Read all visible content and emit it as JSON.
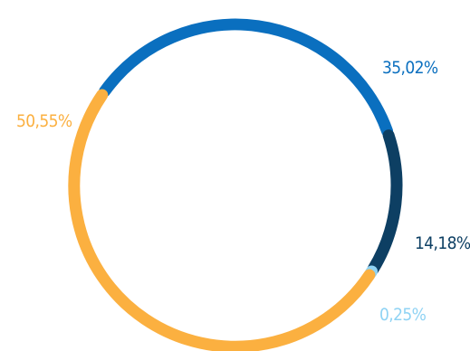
{
  "chart_data": {
    "type": "pie",
    "donut": true,
    "title": "",
    "slices": [
      {
        "value": 35.02,
        "label": "35,02%",
        "color": "#0a6fbf"
      },
      {
        "value": 14.18,
        "label": "14,18%",
        "color": "#0d3f63"
      },
      {
        "value": 0.25,
        "label": "0,25%",
        "color": "#8fd3f4"
      },
      {
        "value": 50.55,
        "label": "50,55%",
        "color": "#fbb040"
      }
    ],
    "legend": "none"
  }
}
